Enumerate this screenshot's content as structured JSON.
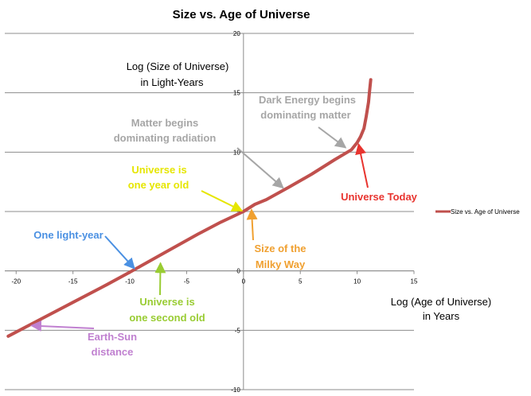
{
  "chart_data": {
    "type": "line",
    "title": "Size vs. Age of Universe",
    "xlabel": [
      "Log (Age of Universe)",
      "in Years"
    ],
    "ylabel": [
      "Log (Size of Universe)",
      "in Light-Years"
    ],
    "xlim": [
      -21,
      15
    ],
    "ylim": [
      -10,
      20
    ],
    "x_ticks": [
      -20,
      -15,
      -10,
      -5,
      0,
      5,
      10,
      15
    ],
    "y_ticks": [
      -10,
      -5,
      0,
      5,
      10,
      15,
      20
    ],
    "grid": "horizontal",
    "legend_position": "right",
    "series": [
      {
        "name": "Size vs. Age of Universe",
        "color": "#c0504d",
        "x": [
          -20.7,
          -18,
          -15,
          -12,
          -10,
          -7,
          -4,
          -2,
          0,
          1,
          2,
          4,
          6,
          8,
          9.5,
          10,
          10.3,
          10.6,
          10.8,
          11.0,
          11.1,
          11.2
        ],
        "y": [
          -5.5,
          -4.15,
          -2.65,
          -1.15,
          -0.1,
          1.5,
          3.1,
          4.1,
          5.0,
          5.6,
          6.0,
          7.05,
          8.15,
          9.35,
          10.2,
          10.8,
          11.3,
          12.0,
          13.0,
          14.2,
          15.2,
          16.1
        ]
      }
    ],
    "annotations": [
      {
        "label": [
          "Dark Energy begins",
          "dominating matter"
        ],
        "color": "#a6a6a6",
        "target": [
          9.1,
          10.3
        ]
      },
      {
        "label": [
          "Matter begins",
          "dominating radiation"
        ],
        "color": "#a6a6a6",
        "target": [
          3.6,
          6.9
        ]
      },
      {
        "label": [
          "Universe is",
          "one year old"
        ],
        "color": "#e6e600",
        "target": [
          0,
          5.0
        ]
      },
      {
        "label": [
          "Universe Today"
        ],
        "color": "#e8342f",
        "target": [
          10.1,
          10.8
        ]
      },
      {
        "label": [
          "Size of the",
          "Milky Way"
        ],
        "color": "#f0a030",
        "target": [
          0.7,
          5.3
        ]
      },
      {
        "label": [
          "One light-year"
        ],
        "color": "#4a90e2",
        "target": [
          -9.5,
          0.1
        ]
      },
      {
        "label": [
          "Universe is",
          "one second old"
        ],
        "color": "#99cc33",
        "target": [
          -7.3,
          0.8
        ]
      },
      {
        "label": [
          "Earth-Sun",
          "distance"
        ],
        "color": "#c080d0",
        "target": [
          -18.8,
          -4.6
        ]
      }
    ]
  }
}
